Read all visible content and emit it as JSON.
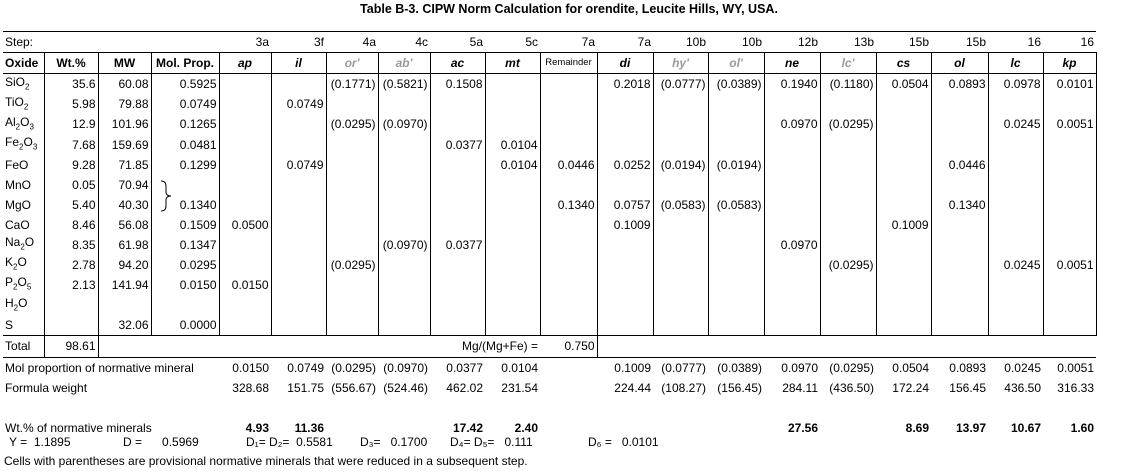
{
  "title": "Table B-3. CIPW Norm Calculation for orendite, Leucite Hills, WY, USA.",
  "step_label": "Step:",
  "steps": [
    "3a",
    "3f",
    "4a",
    "4c",
    "5a",
    "5c",
    "7a",
    "7a",
    "10b",
    "10b",
    "12b",
    "13b",
    "15b",
    "15b",
    "16",
    "16"
  ],
  "headers": {
    "oxide": "Oxide",
    "wt": "Wt.%",
    "mw": "MW",
    "mol": "Mol. Prop.",
    "minerals": [
      "ap",
      "il",
      "or'",
      "ab'",
      "ac",
      "mt",
      "Remainder",
      "di",
      "hy'",
      "ol'",
      "ne",
      "lc'",
      "cs",
      "ol",
      "lc",
      "kp"
    ]
  },
  "oxides": [
    {
      "name": "SiO",
      "sub": "2",
      "wt": "35.6",
      "mw": "60.08",
      "mol": "0.5925",
      "cells": [
        "",
        "",
        "(0.1771)",
        "(0.5821)",
        "0.1508",
        "",
        "",
        "0.2018",
        "(0.0777)",
        "(0.0389)",
        "0.1940",
        "(0.1180)",
        "0.0504",
        "0.0893",
        "0.0978",
        "0.0101"
      ]
    },
    {
      "name": "TiO",
      "sub": "2",
      "wt": "5.98",
      "mw": "79.88",
      "mol": "0.0749",
      "cells": [
        "",
        "0.0749",
        "",
        "",
        "",
        "",
        "",
        "",
        "",
        "",
        "",
        "",
        "",
        "",
        "",
        ""
      ]
    },
    {
      "name": "Al",
      "sub": "2",
      "tail": "O",
      "sub2": "3",
      "wt": "12.9",
      "mw": "101.96",
      "mol": "0.1265",
      "cells": [
        "",
        "",
        "(0.0295)",
        "(0.0970)",
        "",
        "",
        "",
        "",
        "",
        "",
        "0.0970",
        "(0.0295)",
        "",
        "",
        "0.0245",
        "0.0051"
      ]
    },
    {
      "name": "Fe",
      "sub": "2",
      "tail": "O",
      "sub2": "3",
      "wt": "7.68",
      "mw": "159.69",
      "mol": "0.0481",
      "cells": [
        "",
        "",
        "",
        "",
        "0.0377",
        "0.0104",
        "",
        "",
        "",
        "",
        "",
        "",
        "",
        "",
        "",
        ""
      ]
    },
    {
      "name": "FeO",
      "wt": "9.28",
      "mw": "71.85",
      "mol": "0.1299",
      "cells": [
        "",
        "0.0749",
        "",
        "",
        "",
        "0.0104",
        "0.0446",
        "0.0252",
        "(0.0194)",
        "(0.0194)",
        "",
        "",
        "",
        "0.0446",
        "",
        ""
      ]
    },
    {
      "name": "MnO",
      "wt": "0.05",
      "mw": "70.94",
      "mol": "",
      "cells": [
        "",
        "",
        "",
        "",
        "",
        "",
        "",
        "",
        "",
        "",
        "",
        "",
        "",
        "",
        "",
        ""
      ]
    },
    {
      "name": "MgO",
      "wt": "5.40",
      "mw": "40.30",
      "mol": "0.1340",
      "cells": [
        "",
        "",
        "",
        "",
        "",
        "",
        "0.1340",
        "0.0757",
        "(0.0583)",
        "(0.0583)",
        "",
        "",
        "",
        "0.1340",
        "",
        ""
      ]
    },
    {
      "name": "CaO",
      "wt": "8.46",
      "mw": "56.08",
      "mol": "0.1509",
      "cells": [
        "0.0500",
        "",
        "",
        "",
        "",
        "",
        "",
        "0.1009",
        "",
        "",
        "",
        "",
        "0.1009",
        "",
        "",
        ""
      ]
    },
    {
      "name": "Na",
      "sub": "2",
      "tail": "O",
      "wt": "8.35",
      "mw": "61.98",
      "mol": "0.1347",
      "cells": [
        "",
        "",
        "",
        "(0.0970)",
        "0.0377",
        "",
        "",
        "",
        "",
        "",
        "0.0970",
        "",
        "",
        "",
        "",
        ""
      ]
    },
    {
      "name": "K",
      "sub": "2",
      "tail": "O",
      "wt": "2.78",
      "mw": "94.20",
      "mol": "0.0295",
      "cells": [
        "",
        "",
        "(0.0295)",
        "",
        "",
        "",
        "",
        "",
        "",
        "",
        "",
        "(0.0295)",
        "",
        "",
        "0.0245",
        "0.0051"
      ]
    },
    {
      "name": "P",
      "sub": "2",
      "tail": "O",
      "sub2": "5",
      "wt": "2.13",
      "mw": "141.94",
      "mol": "0.0150",
      "cells": [
        "0.0150",
        "",
        "",
        "",
        "",
        "",
        "",
        "",
        "",
        "",
        "",
        "",
        "",
        "",
        "",
        ""
      ]
    },
    {
      "name": "H",
      "sub": "2",
      "tail": "O",
      "wt": "",
      "mw": "",
      "mol": "",
      "cells": [
        "",
        "",
        "",
        "",
        "",
        "",
        "",
        "",
        "",
        "",
        "",
        "",
        "",
        "",
        "",
        ""
      ]
    },
    {
      "name": "S",
      "wt": "",
      "mw": "32.06",
      "mol": "0.0000",
      "cells": [
        "",
        "",
        "",
        "",
        "",
        "",
        "",
        "",
        "",
        "",
        "",
        "",
        "",
        "",
        "",
        ""
      ]
    }
  ],
  "total": {
    "label": "Total",
    "wt": "98.61",
    "mg_label": "Mg/(Mg+Fe) =",
    "mg_value": "0.750"
  },
  "mol_proportion": {
    "label": "Mol proportion of normative mineral",
    "cells": [
      "0.0150",
      "0.0749",
      "(0.0295)",
      "(0.0970)",
      "0.0377",
      "0.0104",
      "",
      "0.1009",
      "(0.0777)",
      "(0.0389)",
      "0.0970",
      "(0.0295)",
      "0.0504",
      "0.0893",
      "0.0245",
      "0.0051"
    ]
  },
  "formula_weight": {
    "label": "Formula weight",
    "cells": [
      "328.68",
      "151.75",
      "(556.67)",
      "(524.46)",
      "462.02",
      "231.54",
      "",
      "224.44",
      "(108.27)",
      "(156.45)",
      "284.11",
      "(436.50)",
      "172.24",
      "156.45",
      "436.50",
      "316.33"
    ]
  },
  "wt_normative": {
    "label": "Wt.% of normative minerals",
    "cells": [
      "4.93",
      "11.36",
      "",
      "",
      "17.42",
      "2.40",
      "",
      "",
      "",
      "",
      "27.56",
      "",
      "8.69",
      "13.97",
      "10.67",
      "1.60"
    ]
  },
  "params": {
    "y_label": "Y =",
    "y_value": "1.1895",
    "d_label": "D =",
    "d_value": "0.5969",
    "d1d2_label": "D₁= D₂=",
    "d1d2_value": "0.5581",
    "d3_label": "D₃=",
    "d3_value": "0.1700",
    "d4d5_label": "D₄= D₅=",
    "d4d5_value": "0.111",
    "d6_label": "D₆ =",
    "d6_value": "0.0101"
  },
  "footnote": "Cells with parentheses are provisional normative minerals that were reduced in a subsequent step."
}
